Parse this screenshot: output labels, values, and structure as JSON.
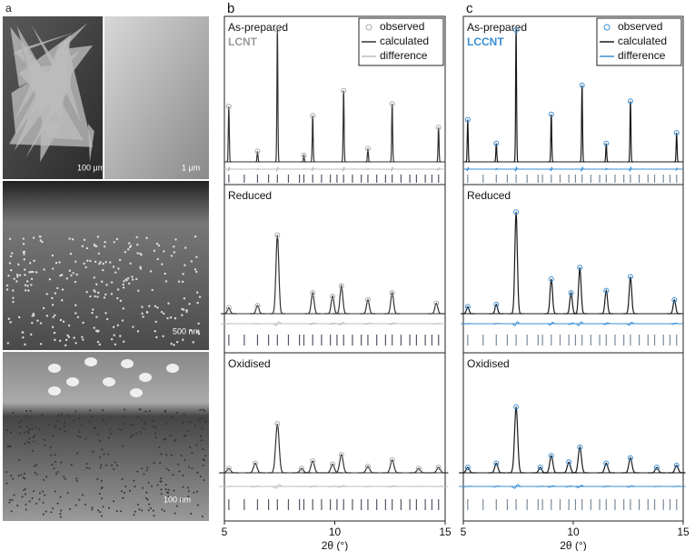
{
  "figure_a": {
    "label": "a",
    "scale_bars": [
      "100 μm",
      "1 μm",
      "500 nm",
      "100 nm"
    ]
  },
  "chart_data": [
    {
      "type": "line",
      "panel_label": "b",
      "material": "LCNT",
      "material_color": "#9a9a9a",
      "xlim": [
        5,
        15
      ],
      "xticks": [
        5,
        10,
        15
      ],
      "xlabel": "2θ (°)",
      "reflection_color": "#556",
      "series": [
        {
          "name": "observed",
          "color": "#a8a8a8"
        },
        {
          "name": "calculated",
          "color": "#333333"
        },
        {
          "name": "difference",
          "color": "#bdbdbd"
        }
      ],
      "subplots": [
        {
          "title": "As-prepared",
          "peak_width": 0.03,
          "peak_x": [
            5.2,
            6.5,
            7.4,
            8.6,
            9.0,
            10.4,
            11.5,
            12.6,
            14.7
          ],
          "peak_heights": [
            42,
            8,
            100,
            5,
            35,
            54,
            10,
            44,
            26
          ],
          "reflections": [
            5.2,
            5.9,
            6.5,
            7.0,
            7.4,
            7.9,
            8.4,
            8.6,
            9.0,
            9.4,
            9.8,
            10.1,
            10.4,
            10.8,
            11.2,
            11.5,
            11.9,
            12.3,
            12.6,
            13.0,
            13.4,
            13.7,
            14.1,
            14.4,
            14.7
          ]
        },
        {
          "title": "Reduced",
          "peak_width": 0.09,
          "peak_x": [
            5.2,
            6.5,
            7.4,
            9.0,
            9.9,
            10.3,
            11.5,
            12.6,
            14.6
          ],
          "peak_heights": [
            5,
            7,
            68,
            18,
            15,
            24,
            12,
            18,
            9
          ],
          "reflections": [
            5.2,
            5.9,
            6.5,
            7.0,
            7.4,
            7.9,
            8.4,
            8.6,
            9.0,
            9.4,
            9.8,
            10.1,
            10.4,
            10.8,
            11.2,
            11.5,
            11.9,
            12.3,
            12.6,
            13.0,
            13.4,
            13.7,
            14.1,
            14.4,
            14.7
          ]
        },
        {
          "title": "Oxidised",
          "peak_width": 0.11,
          "peak_x": [
            5.2,
            6.4,
            7.4,
            8.5,
            9.0,
            9.9,
            10.3,
            11.5,
            12.6,
            13.8,
            14.7
          ],
          "peak_heights": [
            4,
            9,
            46,
            4,
            11,
            8,
            17,
            6,
            12,
            4,
            5
          ],
          "reflections": [
            5.2,
            5.9,
            6.5,
            7.0,
            7.4,
            7.9,
            8.4,
            8.6,
            9.0,
            9.4,
            9.8,
            10.1,
            10.4,
            10.8,
            11.2,
            11.5,
            11.9,
            12.3,
            12.6,
            13.0,
            13.4,
            13.7,
            14.1,
            14.4,
            14.7
          ]
        }
      ]
    },
    {
      "type": "line",
      "panel_label": "c",
      "material": "LCCNT",
      "material_color": "#3a8fd6",
      "xlim": [
        5,
        15
      ],
      "xticks": [
        5,
        10,
        15
      ],
      "xlabel": "2θ (°)",
      "reflection_color": "#7a8a9a",
      "series": [
        {
          "name": "observed",
          "color": "#3a8fd6"
        },
        {
          "name": "calculated",
          "color": "#1a1a1a"
        },
        {
          "name": "difference",
          "color": "#3a8fd6"
        }
      ],
      "subplots": [
        {
          "title": "As-prepared",
          "peak_width": 0.03,
          "peak_x": [
            5.2,
            6.5,
            7.4,
            9.0,
            10.4,
            11.5,
            12.6,
            14.7
          ],
          "peak_heights": [
            32,
            14,
            100,
            36,
            58,
            14,
            46,
            22
          ],
          "reflections": [
            5.2,
            5.9,
            6.5,
            7.0,
            7.4,
            7.9,
            8.4,
            8.6,
            9.0,
            9.4,
            9.8,
            10.1,
            10.4,
            10.8,
            11.2,
            11.5,
            11.9,
            12.3,
            12.6,
            13.0,
            13.4,
            13.7,
            14.1,
            14.4,
            14.7
          ]
        },
        {
          "title": "Reduced",
          "peak_width": 0.08,
          "peak_x": [
            5.2,
            6.5,
            7.4,
            9.0,
            9.9,
            10.3,
            11.5,
            12.6,
            14.6
          ],
          "peak_heights": [
            6,
            8,
            88,
            30,
            18,
            40,
            20,
            32,
            12
          ],
          "reflections": [
            5.2,
            5.9,
            6.5,
            7.0,
            7.4,
            7.9,
            8.4,
            8.6,
            9.0,
            9.4,
            9.8,
            10.1,
            10.4,
            10.8,
            11.2,
            11.5,
            11.9,
            12.3,
            12.6,
            13.0,
            13.4,
            13.7,
            14.1,
            14.4,
            14.7
          ]
        },
        {
          "title": "Oxidised",
          "peak_width": 0.1,
          "peak_x": [
            5.2,
            6.5,
            7.4,
            8.5,
            9.0,
            9.8,
            10.3,
            11.5,
            12.6,
            13.8,
            14.7
          ],
          "peak_heights": [
            5,
            9,
            62,
            5,
            16,
            10,
            24,
            9,
            14,
            5,
            7
          ],
          "reflections": [
            5.2,
            5.9,
            6.5,
            7.0,
            7.4,
            7.9,
            8.4,
            8.6,
            9.0,
            9.4,
            9.8,
            10.1,
            10.4,
            10.8,
            11.2,
            11.5,
            11.9,
            12.3,
            12.6,
            13.0,
            13.4,
            13.7,
            14.1,
            14.4,
            14.7
          ]
        }
      ]
    }
  ]
}
